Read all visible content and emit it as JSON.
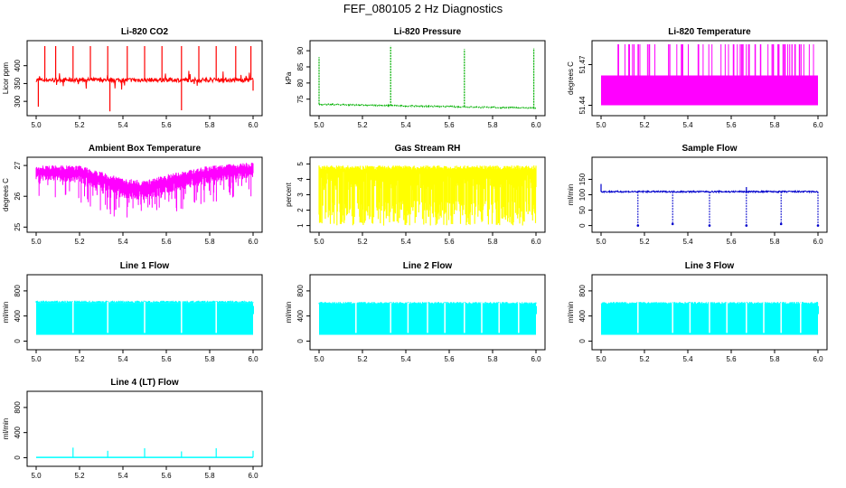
{
  "figure": {
    "title": "FEF_080105  2 Hz Diagnostics"
  },
  "chart_data": [
    {
      "type": "line",
      "title": "Li-820 CO2",
      "xlabel": "",
      "ylabel": "Licor ppm",
      "color": "#ff0000",
      "xlim": [
        5.0,
        6.0
      ],
      "ylim": [
        270,
        460
      ],
      "xticks": [
        5.0,
        5.2,
        5.4,
        5.6,
        5.8,
        6.0
      ],
      "yticks": [
        300,
        350,
        400
      ],
      "baseline": 360,
      "spikes_up": [
        [
          5.04,
          455
        ],
        [
          5.09,
          455
        ],
        [
          5.17,
          455
        ],
        [
          5.25,
          455
        ],
        [
          5.33,
          455
        ],
        [
          5.42,
          455
        ],
        [
          5.5,
          455
        ],
        [
          5.58,
          455
        ],
        [
          5.67,
          455
        ],
        [
          5.75,
          455
        ],
        [
          5.83,
          455
        ],
        [
          5.92,
          455
        ],
        [
          5.99,
          455
        ]
      ],
      "spikes_down": [
        [
          5.01,
          285
        ],
        [
          5.34,
          272
        ],
        [
          5.67,
          275
        ],
        [
          6.0,
          330
        ]
      ]
    },
    {
      "type": "line",
      "title": "Li-820 Pressure",
      "xlabel": "",
      "ylabel": "kPa",
      "color": "#00b000",
      "xlim": [
        5.0,
        6.0
      ],
      "ylim": [
        71,
        92
      ],
      "xticks": [
        5.0,
        5.2,
        5.4,
        5.6,
        5.8,
        6.0
      ],
      "yticks": [
        75,
        80,
        85,
        90
      ],
      "start": 73.4,
      "end": 72.2,
      "spikes_up": [
        [
          5.0,
          88
        ],
        [
          5.33,
          91.5
        ],
        [
          5.67,
          90.5
        ],
        [
          5.99,
          90.8
        ]
      ]
    },
    {
      "type": "line",
      "title": "Li-820 Temperature",
      "xlabel": "",
      "ylabel": "degrees C",
      "color": "#ff00ff",
      "xlim": [
        5.0,
        6.0
      ],
      "ylim": [
        51.435,
        51.485
      ],
      "xticks": [
        5.0,
        5.2,
        5.4,
        5.6,
        5.8,
        6.0
      ],
      "yticks": [
        51.44,
        51.47
      ],
      "low": 51.44,
      "mid": 51.462,
      "high": 51.485
    },
    {
      "type": "line",
      "title": "Ambient Box Temperature",
      "xlabel": "",
      "ylabel": "degrees C",
      "color": "#ff00ff",
      "xlim": [
        5.0,
        6.0
      ],
      "ylim": [
        24.95,
        27.15
      ],
      "xticks": [
        5.0,
        5.2,
        5.4,
        5.6,
        5.8,
        6.0
      ],
      "yticks": [
        25.0,
        26.0,
        27.0
      ],
      "band_top": [
        [
          5.0,
          27.0
        ],
        [
          5.2,
          27.0
        ],
        [
          5.4,
          26.6
        ],
        [
          5.5,
          26.5
        ],
        [
          5.6,
          26.7
        ],
        [
          5.8,
          27.0
        ],
        [
          6.0,
          27.1
        ]
      ],
      "band_bottom": [
        [
          5.0,
          26.0
        ],
        [
          5.2,
          25.8
        ],
        [
          5.4,
          25.2
        ],
        [
          5.5,
          25.1
        ],
        [
          5.6,
          25.4
        ],
        [
          5.8,
          25.8
        ],
        [
          6.0,
          26.0
        ]
      ]
    },
    {
      "type": "line",
      "title": "Gas Stream RH",
      "xlabel": "",
      "ylabel": "percent",
      "color": "#ffff00",
      "xlim": [
        5.0,
        6.0
      ],
      "ylim": [
        0.8,
        5.2
      ],
      "xticks": [
        5.0,
        5.2,
        5.4,
        5.6,
        5.8,
        6.0
      ],
      "yticks": [
        1,
        2,
        3,
        4,
        5
      ],
      "band_top": 4.9,
      "band_bottom": 1.0
    },
    {
      "type": "line",
      "title": "Sample Flow",
      "xlabel": "",
      "ylabel": "ml/min",
      "color": "#0000cc",
      "xlim": [
        5.0,
        6.0
      ],
      "ylim": [
        -10,
        210
      ],
      "xticks": [
        5.0,
        5.2,
        5.4,
        5.6,
        5.8,
        6.0
      ],
      "yticks": [
        0,
        50,
        100,
        150
      ],
      "baseline": 110,
      "dips": [
        [
          5.17,
          0
        ],
        [
          5.33,
          5
        ],
        [
          5.5,
          0
        ],
        [
          5.67,
          0
        ],
        [
          5.83,
          5
        ],
        [
          6.0,
          0
        ]
      ],
      "spikes_up": [
        [
          5.0,
          135
        ],
        [
          5.67,
          125
        ]
      ]
    },
    {
      "type": "line",
      "title": "Line 1 Flow",
      "xlabel": "",
      "ylabel": "ml/min",
      "color": "#00ffff",
      "xlim": [
        5.0,
        6.0
      ],
      "ylim": [
        -80,
        1000
      ],
      "xticks": [
        5.0,
        5.2,
        5.4,
        5.6,
        5.8,
        6.0
      ],
      "yticks": [
        0,
        400,
        800
      ],
      "band_top": 610,
      "band_bottom": 100,
      "gaps": [
        5.17,
        5.33,
        5.5,
        5.67,
        5.83
      ]
    },
    {
      "type": "line",
      "title": "Line 2 Flow",
      "xlabel": "",
      "ylabel": "ml/min",
      "color": "#00ffff",
      "xlim": [
        5.0,
        6.0
      ],
      "ylim": [
        -80,
        1000
      ],
      "xticks": [
        5.0,
        5.2,
        5.4,
        5.6,
        5.8,
        6.0
      ],
      "yticks": [
        0,
        400,
        800
      ],
      "band_top": 590,
      "band_bottom": 100,
      "gaps": [
        5.17,
        5.33,
        5.41,
        5.5,
        5.58,
        5.67,
        5.75,
        5.83,
        5.92
      ]
    },
    {
      "type": "line",
      "title": "Line 3 Flow",
      "xlabel": "",
      "ylabel": "ml/min",
      "color": "#00ffff",
      "xlim": [
        5.0,
        6.0
      ],
      "ylim": [
        -80,
        1000
      ],
      "xticks": [
        5.0,
        5.2,
        5.4,
        5.6,
        5.8,
        6.0
      ],
      "yticks": [
        0,
        400,
        800
      ],
      "band_top": 590,
      "band_bottom": 100,
      "gaps": [
        5.17,
        5.33,
        5.41,
        5.5,
        5.58,
        5.67,
        5.75,
        5.83,
        5.92
      ]
    },
    {
      "type": "line",
      "title": "Line 4 (LT) Flow",
      "xlabel": "",
      "ylabel": "ml/min",
      "color": "#00ffff",
      "xlim": [
        5.0,
        6.0
      ],
      "ylim": [
        -80,
        1000
      ],
      "xticks": [
        5.0,
        5.2,
        5.4,
        5.6,
        5.8,
        6.0
      ],
      "yticks": [
        0,
        400,
        800
      ],
      "baseline": 5,
      "spikes_up": [
        [
          5.17,
          160
        ],
        [
          5.33,
          110
        ],
        [
          5.5,
          150
        ],
        [
          5.67,
          100
        ],
        [
          5.83,
          150
        ],
        [
          6.0,
          110
        ]
      ]
    }
  ]
}
